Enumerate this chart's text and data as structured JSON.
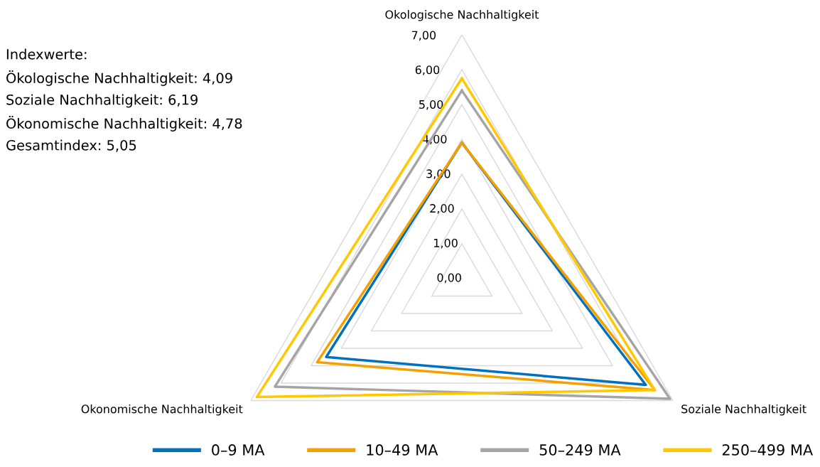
{
  "chart_data": {
    "type": "radar",
    "categories": [
      "Okologische Nachhaltigkeit",
      "Soziale Nachhaltigkeit",
      "Okonomische Nachhaltigkeit"
    ],
    "series": [
      {
        "name": "0–9 MA",
        "color": "#0070c0",
        "values": [
          3.9,
          6.1,
          4.5
        ]
      },
      {
        "name": "10–49 MA",
        "color": "#f5a000",
        "values": [
          3.9,
          6.4,
          4.8
        ]
      },
      {
        "name": "50–249 MA",
        "color": "#a5a5a5",
        "values": [
          5.4,
          6.9,
          6.2
        ]
      },
      {
        "name": "250–499 MA",
        "color": "#ffc800",
        "values": [
          5.75,
          6.4,
          6.8
        ]
      }
    ],
    "ylim": [
      0,
      7
    ],
    "yticks": [
      {
        "value": 0,
        "label": "0,00"
      },
      {
        "value": 1,
        "label": "1,00"
      },
      {
        "value": 2,
        "label": "2,00"
      },
      {
        "value": 3,
        "label": "3,00"
      },
      {
        "value": 4,
        "label": "4,00"
      },
      {
        "value": 5,
        "label": "5,00"
      },
      {
        "value": 6,
        "label": "6,00"
      },
      {
        "value": 7,
        "label": "7,00"
      }
    ],
    "grid": true,
    "legend": "bottom",
    "annotations": [
      "Indexwerte:",
      "Ökologische Nachhaltigkeit: 4,09",
      "Soziale Nachhaltigkeit: 6,19",
      "Ökonomische Nachhaltigkeit: 4,78",
      "Gesamtindex: 5,05"
    ]
  }
}
